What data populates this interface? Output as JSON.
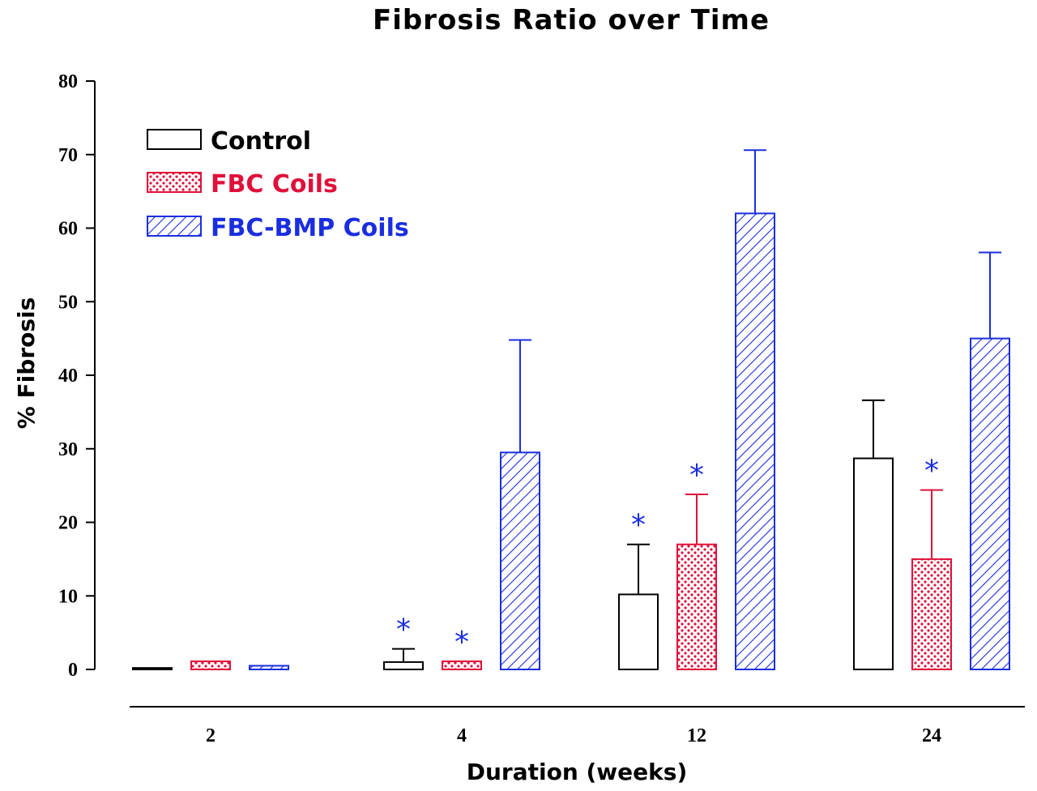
{
  "chart_data": {
    "type": "bar",
    "title": "Fibrosis Ratio over Time",
    "xlabel": "Duration (weeks)",
    "ylabel": "% Fibrosis",
    "categories": [
      "2",
      "4",
      "12",
      "24"
    ],
    "ylim": [
      0,
      80
    ],
    "yticks": [
      "0",
      "10",
      "20",
      "30",
      "40",
      "50",
      "60",
      "70",
      "80"
    ],
    "legend_position": "top-left",
    "series": [
      {
        "name": "Control",
        "color": "#000000",
        "pattern": "none",
        "values": [
          0.2,
          1.0,
          10.2,
          28.7
        ],
        "error": [
          0,
          1.8,
          6.8,
          7.9
        ],
        "significant": [
          false,
          true,
          true,
          false
        ]
      },
      {
        "name": "FBC Coils",
        "color": "#e0103a",
        "pattern": "dots",
        "values": [
          1.1,
          1.1,
          17.0,
          15.0
        ],
        "error": [
          0,
          0,
          6.8,
          9.4
        ],
        "significant": [
          false,
          true,
          true,
          true
        ]
      },
      {
        "name": "FBC-BMP Coils",
        "color": "#1a2ee0",
        "pattern": "hatch",
        "values": [
          0.5,
          29.5,
          62.0,
          45.0
        ],
        "error": [
          0,
          15.3,
          8.6,
          11.7
        ],
        "significant": [
          false,
          false,
          false,
          false
        ]
      }
    ],
    "annotation_text": "*",
    "annotation_color": "#1a2ee0"
  }
}
